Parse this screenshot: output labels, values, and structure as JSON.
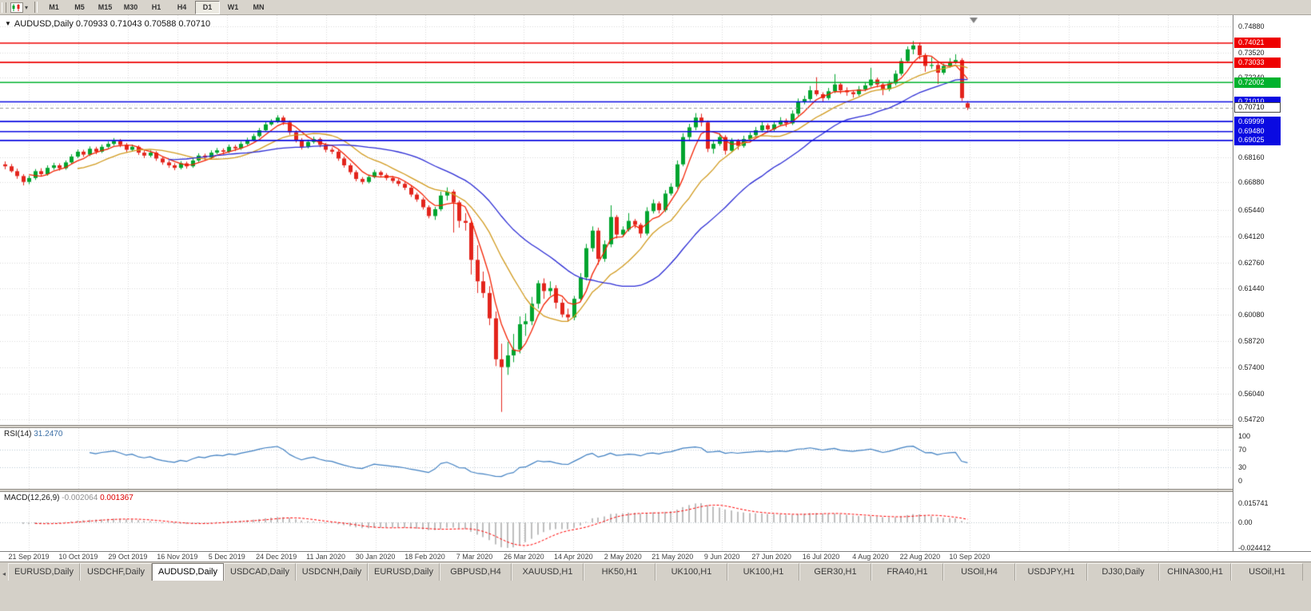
{
  "toolbar": {
    "timeframe_buttons": [
      "M1",
      "M5",
      "M15",
      "M30",
      "H1",
      "H4",
      "D1",
      "W1",
      "MN"
    ],
    "active_timeframe": "D1"
  },
  "header": {
    "info_line": "AUDUSD,Daily 0.70933 0.71043 0.70588 0.70710"
  },
  "rsi_panel": {
    "label": "RSI(14)",
    "value": "31.2470",
    "levels": [
      "100",
      "70",
      "30",
      "0"
    ]
  },
  "macd_panel": {
    "label": "MACD(12,26,9)",
    "main_value": "-0.002064",
    "signal_value": "0.001367",
    "axis_top": "0.015741",
    "axis_zero": "0.00",
    "axis_bottom": "-0.024412"
  },
  "tab_bar": {
    "active_index": 2,
    "items": [
      "EURUSD,Daily",
      "USDCHF,Daily",
      "AUDUSD,Daily",
      "USDCAD,Daily",
      "USDCNH,Daily",
      "EURUSD,Daily",
      "GBPUSD,H4",
      "XAUUSD,H1",
      "HK50,H1",
      "UK100,H1",
      "UK100,H1",
      "GER30,H1",
      "FRA40,H1",
      "USOil,H4",
      "USDJPY,H1",
      "DJ30,Daily",
      "CHINA300,H1",
      "USOil,H1"
    ]
  },
  "chart_data": {
    "type": "candlestick",
    "symbol": "AUDUSD",
    "timeframe": "Daily",
    "current_bar": {
      "open": 0.70933,
      "high": 0.71043,
      "low": 0.70588,
      "close": 0.7071
    },
    "bid": 0.7071,
    "bid_label": "0.70710",
    "y_range": [
      0.5472,
      0.7488
    ],
    "y_axis_labels": [
      "0.74880",
      "0.73520",
      "0.72240",
      "0.68160",
      "0.66880",
      "0.65440",
      "0.64120",
      "0.62760",
      "0.61440",
      "0.60080",
      "0.58720",
      "0.57400",
      "0.56040",
      "0.54720"
    ],
    "hidden_grid_prices": [
      0.7088,
      0.6952
    ],
    "x_axis_labels": [
      "21 Sep 2019",
      "10 Oct 2019",
      "29 Oct 2019",
      "16 Nov 2019",
      "5 Dec 2019",
      "24 Dec 2019",
      "11 Jan 2020",
      "30 Jan 2020",
      "18 Feb 2020",
      "7 Mar 2020",
      "26 Mar 2020",
      "14 Apr 2020",
      "2 May 2020",
      "21 May 2020",
      "9 Jun 2020",
      "27 Jun 2020",
      "16 Jul 2020",
      "4 Aug 2020",
      "22 Aug 2020",
      "10 Sep 2020"
    ],
    "hlines": [
      {
        "label": "0.74021",
        "price": 0.74021,
        "color": "#ee0000"
      },
      {
        "label": "0.73033",
        "price": 0.73033,
        "color": "#ee0000"
      },
      {
        "label": "0.72002",
        "price": 0.72002,
        "color": "#00b22d"
      },
      {
        "label": "0.71010",
        "price": 0.7101,
        "color": "#0a0ae1"
      },
      {
        "label": "0.69999",
        "price": 0.69999,
        "color": "#0a0ae1"
      },
      {
        "label": "0.69480",
        "price": 0.6948,
        "color": "#0a0ae1"
      },
      {
        "label": "0.69025",
        "price": 0.69025,
        "color": "#0a0ae1"
      }
    ],
    "moving_averages": [
      {
        "name": "fast",
        "period": 5,
        "color": "#f32000"
      },
      {
        "name": "medium",
        "period": 13,
        "color": "#d19a1e"
      },
      {
        "name": "slow",
        "period": 28,
        "color": "#2a2ad4"
      }
    ],
    "colors": {
      "up": "#00a42e",
      "down": "#e3241c",
      "grid": "#d8d8d8",
      "bid_line": "#9c9c9c",
      "rsi_line": "#3f7fc1",
      "rsi_levels": "#b8c6d2",
      "macd_hist": "#bdbdbd",
      "macd_signal": "#ff0000",
      "shift_marker": "#808080"
    },
    "rsi": {
      "period": 14,
      "current": 31.247
    },
    "macd": {
      "fast": 12,
      "slow": 26,
      "signal": 9,
      "main": -0.002064,
      "signal_value": 0.001367
    },
    "candles": [
      [
        0.678,
        0.6795,
        0.6755,
        0.677
      ],
      [
        0.677,
        0.6782,
        0.6738,
        0.6745
      ],
      [
        0.6745,
        0.6758,
        0.6706,
        0.672
      ],
      [
        0.672,
        0.673,
        0.6672,
        0.669
      ],
      [
        0.669,
        0.6722,
        0.6678,
        0.671
      ],
      [
        0.671,
        0.6756,
        0.67,
        0.6745
      ],
      [
        0.6745,
        0.676,
        0.6718,
        0.673
      ],
      [
        0.673,
        0.6775,
        0.6722,
        0.6762
      ],
      [
        0.6762,
        0.6788,
        0.6752,
        0.6775
      ],
      [
        0.6775,
        0.6785,
        0.6748,
        0.676
      ],
      [
        0.676,
        0.68,
        0.6752,
        0.679
      ],
      [
        0.679,
        0.6832,
        0.6782,
        0.682
      ],
      [
        0.682,
        0.6856,
        0.6812,
        0.6845
      ],
      [
        0.6845,
        0.6855,
        0.6818,
        0.683
      ],
      [
        0.683,
        0.6872,
        0.6822,
        0.686
      ],
      [
        0.686,
        0.687,
        0.6832,
        0.6845
      ],
      [
        0.6845,
        0.6882,
        0.6838,
        0.687
      ],
      [
        0.687,
        0.6897,
        0.6862,
        0.6885
      ],
      [
        0.6885,
        0.6915,
        0.6876,
        0.69
      ],
      [
        0.69,
        0.691,
        0.6868,
        0.688
      ],
      [
        0.688,
        0.689,
        0.6842,
        0.6855
      ],
      [
        0.6855,
        0.6882,
        0.6846,
        0.687
      ],
      [
        0.687,
        0.6878,
        0.6828,
        0.684
      ],
      [
        0.684,
        0.6852,
        0.6812,
        0.6825
      ],
      [
        0.6825,
        0.6852,
        0.6816,
        0.684
      ],
      [
        0.684,
        0.6848,
        0.6798,
        0.681
      ],
      [
        0.681,
        0.682,
        0.6778,
        0.679
      ],
      [
        0.679,
        0.68,
        0.6762,
        0.6775
      ],
      [
        0.6775,
        0.6786,
        0.675,
        0.6762
      ],
      [
        0.6762,
        0.6797,
        0.6754,
        0.6785
      ],
      [
        0.6785,
        0.6794,
        0.6758,
        0.677
      ],
      [
        0.677,
        0.6812,
        0.6762,
        0.68
      ],
      [
        0.68,
        0.6837,
        0.6792,
        0.6825
      ],
      [
        0.6825,
        0.6835,
        0.6802,
        0.6815
      ],
      [
        0.6815,
        0.6852,
        0.6808,
        0.684
      ],
      [
        0.684,
        0.6864,
        0.6832,
        0.6852
      ],
      [
        0.6852,
        0.6862,
        0.683,
        0.6845
      ],
      [
        0.6845,
        0.6882,
        0.6838,
        0.687
      ],
      [
        0.687,
        0.688,
        0.6848,
        0.6862
      ],
      [
        0.6862,
        0.6897,
        0.6854,
        0.6885
      ],
      [
        0.6885,
        0.6917,
        0.6878,
        0.6905
      ],
      [
        0.6905,
        0.6937,
        0.6898,
        0.6925
      ],
      [
        0.6925,
        0.6967,
        0.6918,
        0.6955
      ],
      [
        0.6955,
        0.6997,
        0.6948,
        0.6985
      ],
      [
        0.6985,
        0.7012,
        0.6978,
        0.7
      ],
      [
        0.7,
        0.7032,
        0.6992,
        0.702
      ],
      [
        0.702,
        0.703,
        0.6982,
        0.6995
      ],
      [
        0.6995,
        0.7005,
        0.6932,
        0.6945
      ],
      [
        0.6945,
        0.6955,
        0.6892,
        0.6905
      ],
      [
        0.6905,
        0.6915,
        0.6856,
        0.687
      ],
      [
        0.687,
        0.6907,
        0.6862,
        0.6895
      ],
      [
        0.6895,
        0.6922,
        0.6886,
        0.691
      ],
      [
        0.691,
        0.6918,
        0.6868,
        0.688
      ],
      [
        0.688,
        0.689,
        0.6842,
        0.6855
      ],
      [
        0.6855,
        0.6867,
        0.6833,
        0.6845
      ],
      [
        0.6845,
        0.6855,
        0.6798,
        0.681
      ],
      [
        0.681,
        0.682,
        0.6763,
        0.6775
      ],
      [
        0.6775,
        0.6785,
        0.6728,
        0.674
      ],
      [
        0.674,
        0.675,
        0.6693,
        0.6705
      ],
      [
        0.6705,
        0.6715,
        0.6678,
        0.669
      ],
      [
        0.669,
        0.6727,
        0.6682,
        0.6715
      ],
      [
        0.6715,
        0.6752,
        0.6708,
        0.674
      ],
      [
        0.674,
        0.6748,
        0.6713,
        0.6725
      ],
      [
        0.6725,
        0.6735,
        0.6698,
        0.671
      ],
      [
        0.671,
        0.672,
        0.6683,
        0.6695
      ],
      [
        0.6695,
        0.6705,
        0.6668,
        0.668
      ],
      [
        0.668,
        0.669,
        0.6648,
        0.666
      ],
      [
        0.666,
        0.667,
        0.6613,
        0.6625
      ],
      [
        0.6625,
        0.6635,
        0.6588,
        0.66
      ],
      [
        0.66,
        0.661,
        0.6548,
        0.656
      ],
      [
        0.656,
        0.657,
        0.6503,
        0.6515
      ],
      [
        0.6515,
        0.6562,
        0.6495,
        0.655
      ],
      [
        0.655,
        0.664,
        0.654,
        0.662
      ],
      [
        0.662,
        0.6662,
        0.6595,
        0.664
      ],
      [
        0.664,
        0.665,
        0.643,
        0.6585
      ],
      [
        0.6585,
        0.6595,
        0.6455,
        0.649
      ],
      [
        0.649,
        0.653,
        0.644,
        0.648
      ],
      [
        0.648,
        0.6495,
        0.6215,
        0.629
      ],
      [
        0.629,
        0.6365,
        0.612,
        0.618
      ],
      [
        0.618,
        0.623,
        0.6095,
        0.612
      ],
      [
        0.612,
        0.6155,
        0.5955,
        0.599
      ],
      [
        0.599,
        0.6025,
        0.5745,
        0.578
      ],
      [
        0.578,
        0.586,
        0.551,
        0.574
      ],
      [
        0.574,
        0.587,
        0.57,
        0.58
      ],
      [
        0.58,
        0.591,
        0.5765,
        0.583
      ],
      [
        0.583,
        0.6,
        0.581,
        0.596
      ],
      [
        0.596,
        0.6015,
        0.59,
        0.5975
      ],
      [
        0.5975,
        0.61,
        0.5955,
        0.6065
      ],
      [
        0.6065,
        0.6185,
        0.604,
        0.617
      ],
      [
        0.617,
        0.6195,
        0.609,
        0.613
      ],
      [
        0.613,
        0.618,
        0.6105,
        0.6145
      ],
      [
        0.6145,
        0.616,
        0.604,
        0.607
      ],
      [
        0.607,
        0.609,
        0.5995,
        0.601
      ],
      [
        0.601,
        0.604,
        0.5975,
        0.5995
      ],
      [
        0.5995,
        0.6105,
        0.598,
        0.609
      ],
      [
        0.609,
        0.6222,
        0.6075,
        0.62
      ],
      [
        0.62,
        0.6372,
        0.6185,
        0.635
      ],
      [
        0.635,
        0.6462,
        0.6332,
        0.644
      ],
      [
        0.644,
        0.6455,
        0.6265,
        0.6295
      ],
      [
        0.6295,
        0.639,
        0.628,
        0.637
      ],
      [
        0.637,
        0.657,
        0.6355,
        0.651
      ],
      [
        0.651,
        0.652,
        0.64,
        0.642
      ],
      [
        0.642,
        0.6462,
        0.6408,
        0.6445
      ],
      [
        0.6445,
        0.653,
        0.6435,
        0.649
      ],
      [
        0.649,
        0.65,
        0.6452,
        0.647
      ],
      [
        0.647,
        0.648,
        0.6403,
        0.6425
      ],
      [
        0.6425,
        0.656,
        0.6415,
        0.654
      ],
      [
        0.654,
        0.66,
        0.6528,
        0.658
      ],
      [
        0.658,
        0.659,
        0.6528,
        0.6545
      ],
      [
        0.6545,
        0.6648,
        0.6535,
        0.663
      ],
      [
        0.663,
        0.6683,
        0.662,
        0.6665
      ],
      [
        0.6665,
        0.68,
        0.6655,
        0.678
      ],
      [
        0.678,
        0.694,
        0.677,
        0.692
      ],
      [
        0.692,
        0.6988,
        0.69,
        0.697
      ],
      [
        0.697,
        0.7043,
        0.6955,
        0.702
      ],
      [
        0.702,
        0.704,
        0.6975,
        0.6995
      ],
      [
        0.6995,
        0.7005,
        0.6843,
        0.686
      ],
      [
        0.686,
        0.6905,
        0.6835,
        0.6885
      ],
      [
        0.6885,
        0.694,
        0.6875,
        0.692
      ],
      [
        0.692,
        0.693,
        0.683,
        0.685
      ],
      [
        0.685,
        0.6915,
        0.684,
        0.69
      ],
      [
        0.69,
        0.691,
        0.6855,
        0.6875
      ],
      [
        0.6875,
        0.6927,
        0.6865,
        0.691
      ],
      [
        0.691,
        0.6945,
        0.69,
        0.693
      ],
      [
        0.693,
        0.6972,
        0.692,
        0.6955
      ],
      [
        0.6955,
        0.6998,
        0.6945,
        0.698
      ],
      [
        0.698,
        0.699,
        0.6942,
        0.696
      ],
      [
        0.696,
        0.7002,
        0.695,
        0.6985
      ],
      [
        0.6985,
        0.7022,
        0.6975,
        0.7005
      ],
      [
        0.7005,
        0.7015,
        0.6972,
        0.699
      ],
      [
        0.699,
        0.7057,
        0.6982,
        0.704
      ],
      [
        0.704,
        0.7118,
        0.703,
        0.71
      ],
      [
        0.71,
        0.7132,
        0.7088,
        0.7115
      ],
      [
        0.7115,
        0.7182,
        0.7105,
        0.716
      ],
      [
        0.716,
        0.7227,
        0.713,
        0.714
      ],
      [
        0.714,
        0.715,
        0.7102,
        0.712
      ],
      [
        0.712,
        0.7172,
        0.711,
        0.7155
      ],
      [
        0.7155,
        0.7243,
        0.7145,
        0.719
      ],
      [
        0.719,
        0.72,
        0.7142,
        0.716
      ],
      [
        0.716,
        0.7175,
        0.7132,
        0.715
      ],
      [
        0.715,
        0.716,
        0.7122,
        0.714
      ],
      [
        0.714,
        0.7182,
        0.713,
        0.7165
      ],
      [
        0.7165,
        0.7202,
        0.7155,
        0.7185
      ],
      [
        0.7185,
        0.7276,
        0.7175,
        0.7215
      ],
      [
        0.7215,
        0.7225,
        0.7175,
        0.719
      ],
      [
        0.719,
        0.72,
        0.7135,
        0.7165
      ],
      [
        0.7165,
        0.7212,
        0.7155,
        0.7195
      ],
      [
        0.7195,
        0.7262,
        0.7185,
        0.7245
      ],
      [
        0.7245,
        0.7325,
        0.7235,
        0.731
      ],
      [
        0.731,
        0.7385,
        0.73,
        0.737
      ],
      [
        0.737,
        0.7413,
        0.7345,
        0.739
      ],
      [
        0.739,
        0.7405,
        0.732,
        0.734
      ],
      [
        0.734,
        0.735,
        0.7255,
        0.7285
      ],
      [
        0.7285,
        0.733,
        0.727,
        0.729
      ],
      [
        0.729,
        0.73,
        0.7192,
        0.725
      ],
      [
        0.725,
        0.7297,
        0.724,
        0.7285
      ],
      [
        0.7285,
        0.7325,
        0.7275,
        0.7305
      ],
      [
        0.7305,
        0.7345,
        0.7295,
        0.7315
      ],
      [
        0.7315,
        0.7325,
        0.7105,
        0.712
      ],
      [
        0.70933,
        0.71043,
        0.70588,
        0.7071
      ]
    ]
  }
}
